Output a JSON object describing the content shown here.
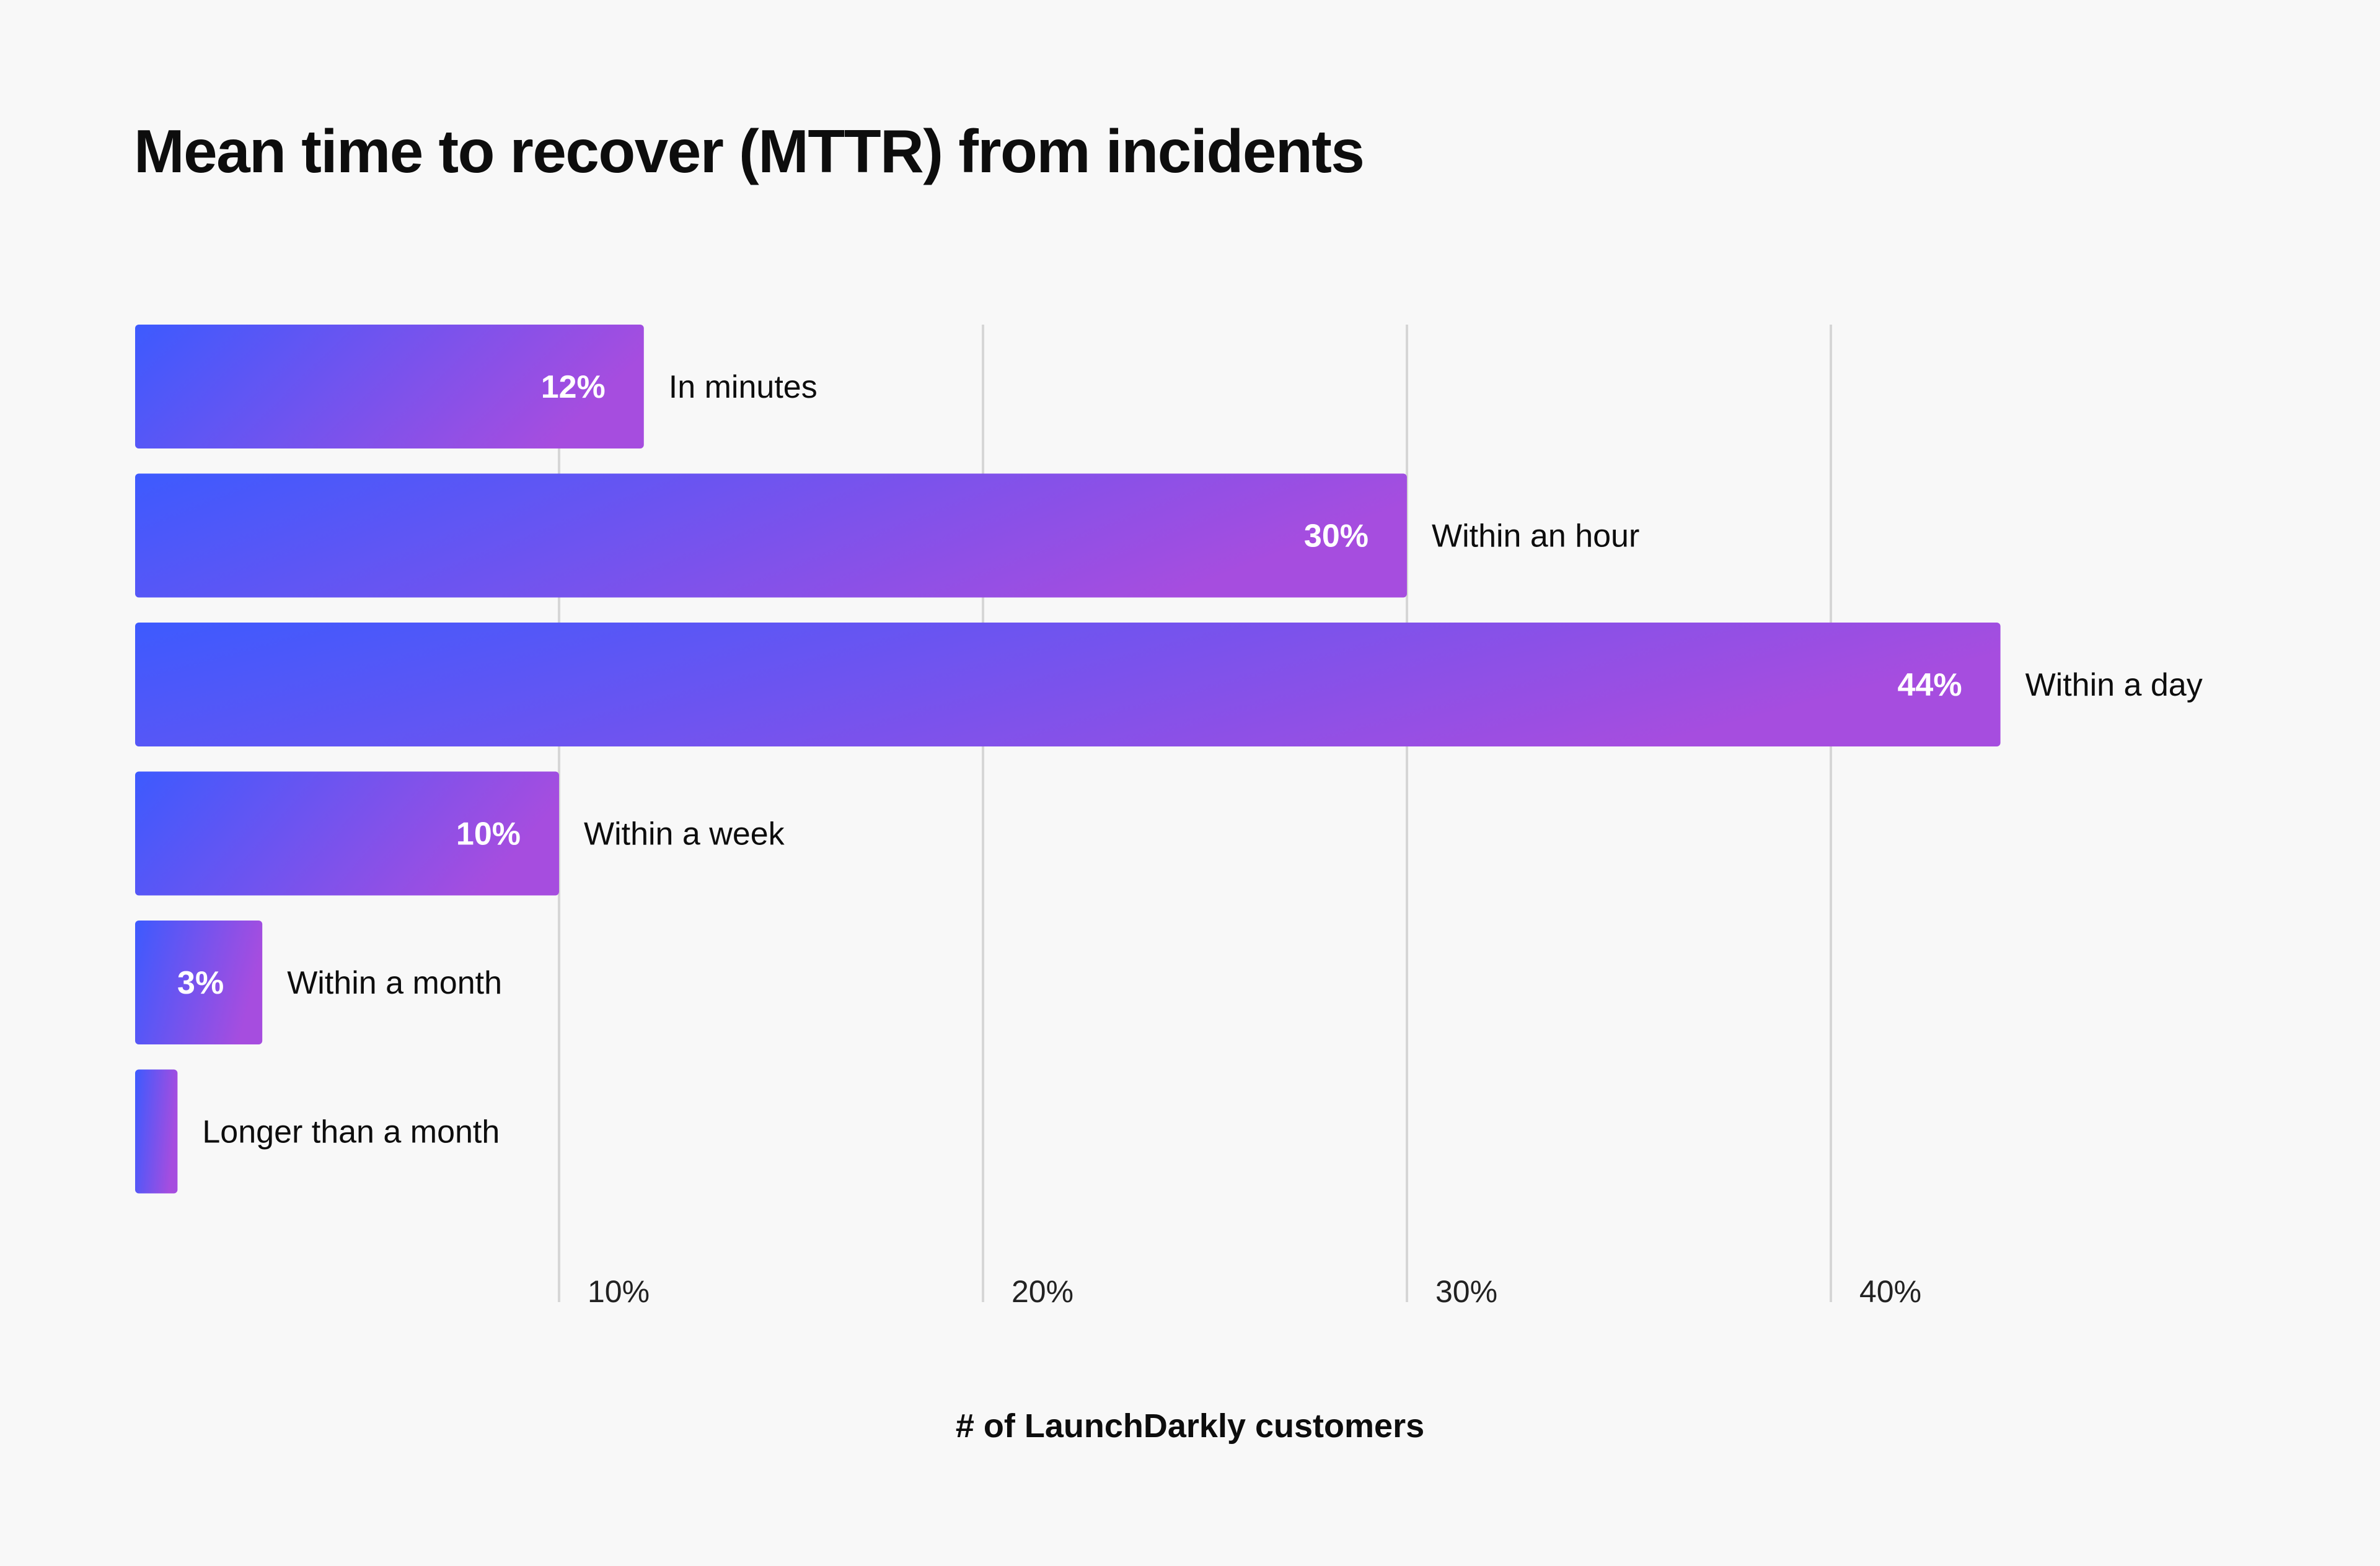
{
  "chart_data": {
    "type": "bar",
    "orientation": "horizontal",
    "title": "Mean time to recover (MTTR) from incidents",
    "xlabel": "# of LaunchDarkly customers",
    "ylabel": "",
    "categories": [
      "In minutes",
      "Within an hour",
      "Within a day",
      "Within a week",
      "Within a month",
      "Longer than a month"
    ],
    "values": [
      12,
      30,
      44,
      10,
      3,
      1
    ],
    "value_labels": [
      "12%",
      "30%",
      "44%",
      "10%",
      "3%",
      ""
    ],
    "xlim": [
      0,
      50
    ],
    "ticks": [
      10,
      20,
      30,
      40
    ],
    "tick_labels": [
      "10%",
      "20%",
      "30%",
      "40%"
    ],
    "grid": true,
    "legend": "none",
    "colors": {
      "gradient_start": "#3d5afe",
      "gradient_end": "#a64ddf",
      "grid": "#d6d6d6",
      "background": "#f8f8f8"
    }
  }
}
